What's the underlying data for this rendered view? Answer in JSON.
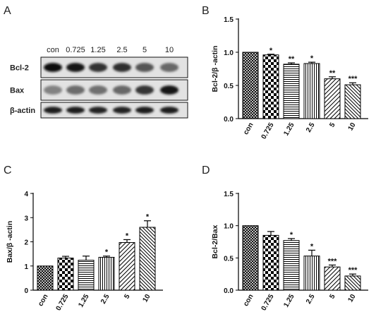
{
  "panel_letters": [
    "A",
    "B",
    "C",
    "D"
  ],
  "western_blot": {
    "lanes": [
      "con",
      "0.725",
      "1.25",
      "2.5",
      "5",
      "10"
    ],
    "rows": [
      {
        "label": "Bcl-2",
        "intensities": [
          1.0,
          0.96,
          0.82,
          0.84,
          0.62,
          0.52
        ]
      },
      {
        "label": "Bax",
        "intensities": [
          0.38,
          0.5,
          0.48,
          0.52,
          0.8,
          0.95
        ]
      },
      {
        "label": "β-actin",
        "intensities": [
          0.92,
          0.92,
          0.9,
          0.9,
          0.92,
          0.92
        ]
      }
    ]
  },
  "chart_data": [
    {
      "panel": "B",
      "type": "bar",
      "categories": [
        "con",
        "0.725",
        "1.25",
        "2.5",
        "5",
        "10"
      ],
      "values": [
        1.0,
        0.96,
        0.82,
        0.83,
        0.6,
        0.51
      ],
      "errors": [
        0.0,
        0.01,
        0.02,
        0.02,
        0.03,
        0.03
      ],
      "significance": [
        "",
        "*",
        "**",
        "*",
        "**",
        "***"
      ],
      "ylabel": "Bcl-2/β -actin",
      "ylim": [
        0,
        1.5
      ],
      "yticks": [
        "0.0",
        "0.5",
        "1.0",
        "1.5"
      ]
    },
    {
      "panel": "C",
      "type": "bar",
      "categories": [
        "con",
        "0.725",
        "1.25",
        "2.5",
        "5",
        "10"
      ],
      "values": [
        1.0,
        1.33,
        1.24,
        1.36,
        1.97,
        2.6
      ],
      "errors": [
        0.0,
        0.07,
        0.17,
        0.05,
        0.12,
        0.27
      ],
      "significance": [
        "",
        "",
        "",
        "*",
        "*",
        "*"
      ],
      "ylabel": "Bax/β -actin",
      "ylim": [
        0,
        4
      ],
      "yticks": [
        "0",
        "1",
        "2",
        "3",
        "4"
      ]
    },
    {
      "panel": "D",
      "type": "bar",
      "categories": [
        "con",
        "0.725",
        "1.25",
        "2.5",
        "5",
        "10"
      ],
      "values": [
        1.0,
        0.85,
        0.77,
        0.53,
        0.36,
        0.22
      ],
      "errors": [
        0.0,
        0.06,
        0.03,
        0.09,
        0.03,
        0.03
      ],
      "significance": [
        "",
        "",
        "*",
        "*",
        "***",
        "***"
      ],
      "ylabel": "Bcl-2/Bax",
      "ylim": [
        0,
        1.5
      ],
      "yticks": [
        "0.0",
        "0.5",
        "1.0",
        "1.5"
      ]
    }
  ]
}
